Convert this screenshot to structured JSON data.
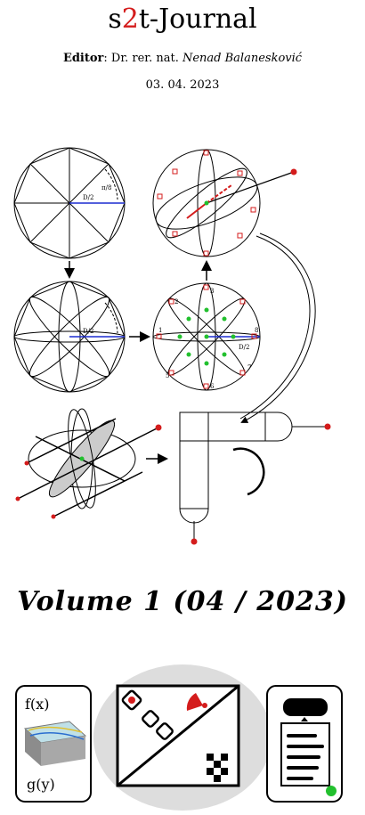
{
  "header": {
    "journal_prefix": "s",
    "journal_accent": "2",
    "journal_suffix": "t-Journal",
    "editor_label": "Editor",
    "editor_title": ": Dr. rer. nat. ",
    "editor_name": "Nenad Balanesković",
    "date": "03. 04. 2023"
  },
  "figure": {
    "label_d2": "D/2",
    "label_pi8": "π/8",
    "numbers": [
      "1",
      "2",
      "3",
      "4",
      "5",
      "6",
      "7",
      "8"
    ]
  },
  "volume": {
    "text": "Volume 1 (04 / 2023)"
  },
  "icons": {
    "fx_label": "f(x)",
    "gy_label": "g(y)"
  },
  "colors": {
    "accent": "#d41c1c",
    "green": "#22c02e",
    "blue": "#1b2bd0",
    "gray": "#dddddd"
  }
}
